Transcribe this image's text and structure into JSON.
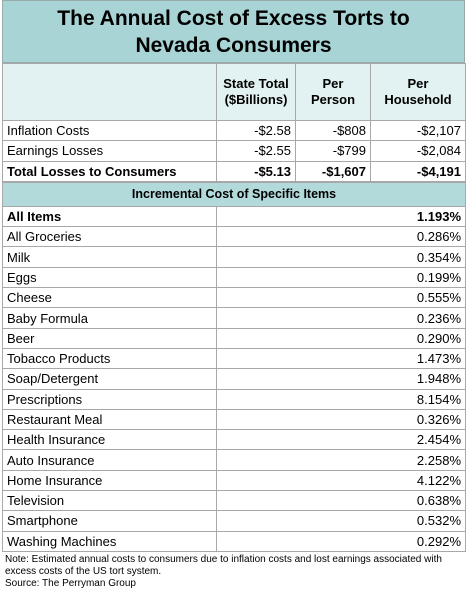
{
  "title": "The Annual Cost of Excess Torts to Nevada Consumers",
  "summary": {
    "headers": [
      "State Total ($Billions)",
      "Per Person",
      "Per Household"
    ],
    "rows": [
      {
        "label": "Inflation Costs",
        "values": [
          "-$2.58",
          "-$808",
          "-$2,107"
        ]
      },
      {
        "label": "Earnings Losses",
        "values": [
          "-$2.55",
          "-$799",
          "-$2,084"
        ]
      },
      {
        "label": "Total Losses to Consumers",
        "values": [
          "-$5.13",
          "-$1,607",
          "-$4,191"
        ]
      }
    ]
  },
  "items": {
    "title": "Incremental Cost of Specific Items",
    "rows": [
      [
        "All Items",
        "1.193%"
      ],
      [
        "All Groceries",
        "0.286%"
      ],
      [
        "Milk",
        "0.354%"
      ],
      [
        "Eggs",
        "0.199%"
      ],
      [
        "Cheese",
        "0.555%"
      ],
      [
        "Baby Formula",
        "0.236%"
      ],
      [
        "Beer",
        "0.290%"
      ],
      [
        "Tobacco Products",
        "1.473%"
      ],
      [
        "Soap/Detergent",
        "1.948%"
      ],
      [
        "Prescriptions",
        "8.154%"
      ],
      [
        "Restaurant Meal",
        "0.326%"
      ],
      [
        "Health Insurance",
        "2.454%"
      ],
      [
        "Auto Insurance",
        "2.258%"
      ],
      [
        "Home Insurance",
        "4.122%"
      ],
      [
        "Television",
        "0.638%"
      ],
      [
        "Smartphone",
        "0.532%"
      ],
      [
        "Washing Machines",
        "0.292%"
      ]
    ]
  },
  "note": "Note: Estimated annual costs to consumers due to inflation costs and lost earnings associated with excess costs of the US tort system.",
  "source": "Source: The Perryman Group"
}
